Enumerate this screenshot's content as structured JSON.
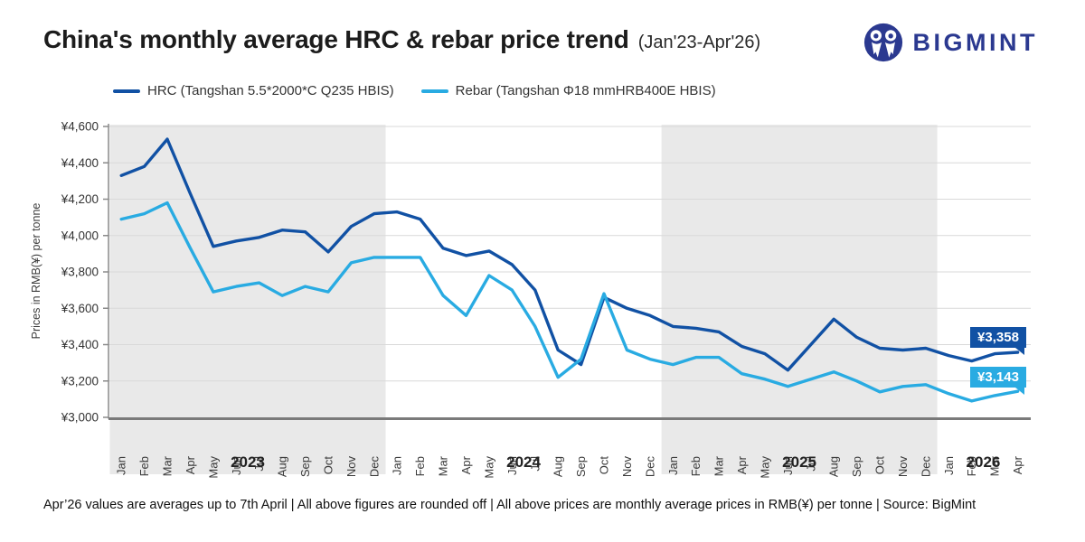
{
  "header": {
    "title": "China's monthly average HRC & rebar price trend",
    "subtitle": "(Jan'23-Apr'26)",
    "logo_text": "BIGMINT",
    "logo_color": "#2b3990"
  },
  "footer": {
    "note": "Apr’26 values are averages up to 7th April  |  All above figures are rounded off  |  All above prices are monthly average prices in RMB(¥) per tonne  |  Source: BigMint"
  },
  "chart_data": {
    "type": "line",
    "title": "China's monthly average HRC & rebar price trend (Jan'23-Apr'26)",
    "ylabel": "Prices in RMB(¥) per tonne",
    "ylim": [
      3000,
      4600
    ],
    "ytick_step": 200,
    "ytick_labels": [
      "¥3,000",
      "¥3,200",
      "¥3,400",
      "¥3,600",
      "¥3,800",
      "¥4,000",
      "¥4,200",
      "¥4,400",
      "¥4,600"
    ],
    "grid": "horizontal",
    "legend_position": "top",
    "band_color": "#e9e9e9",
    "x_months": [
      "Jan",
      "Feb",
      "Mar",
      "Apr",
      "May",
      "Jun",
      "Jul",
      "Aug",
      "Sep",
      "Oct",
      "Nov",
      "Dec",
      "Jan",
      "Feb",
      "Mar",
      "Apr",
      "May",
      "Jun",
      "Jul",
      "Aug",
      "Sep",
      "Oct",
      "Nov",
      "Dec",
      "Jan",
      "Feb",
      "Mar",
      "Apr",
      "May",
      "Jun",
      "Jul",
      "Aug",
      "Sep",
      "Oct",
      "Nov",
      "Dec",
      "Jan",
      "Feb",
      "Mar",
      "Apr"
    ],
    "year_bands": [
      {
        "label": "2023",
        "start_index": 0,
        "end_index": 11,
        "shaded": true
      },
      {
        "label": "2024",
        "start_index": 12,
        "end_index": 23,
        "shaded": false
      },
      {
        "label": "2025",
        "start_index": 24,
        "end_index": 35,
        "shaded": true
      },
      {
        "label": "2026",
        "start_index": 36,
        "end_index": 39,
        "shaded": false
      }
    ],
    "series": [
      {
        "name": "HRC (Tangshan 5.5*2000*C Q235 HBIS)",
        "color": "#1151a4",
        "values": [
          4330,
          4380,
          4530,
          4230,
          3940,
          3970,
          3990,
          4030,
          4020,
          3910,
          4050,
          4120,
          4130,
          4090,
          3930,
          3890,
          3915,
          3840,
          3700,
          3370,
          3290,
          3660,
          3600,
          3560,
          3500,
          3490,
          3470,
          3390,
          3350,
          3260,
          3400,
          3540,
          3440,
          3380,
          3370,
          3380,
          3340,
          3310,
          3350,
          3358
        ]
      },
      {
        "name": "Rebar (Tangshan Φ18 mmHRB400E HBIS)",
        "color": "#29abe2",
        "values": [
          4090,
          4120,
          4180,
          3930,
          3690,
          3720,
          3740,
          3670,
          3720,
          3690,
          3850,
          3880,
          3880,
          3880,
          3670,
          3560,
          3780,
          3700,
          3500,
          3220,
          3320,
          3680,
          3370,
          3320,
          3290,
          3330,
          3330,
          3240,
          3210,
          3170,
          3210,
          3250,
          3200,
          3140,
          3170,
          3180,
          3130,
          3090,
          3120,
          3143
        ]
      }
    ],
    "end_labels": [
      {
        "text": "¥3,358",
        "series_index": 0,
        "color": "#1151a4"
      },
      {
        "text": "¥3,143",
        "series_index": 1,
        "color": "#29abe2"
      }
    ]
  }
}
